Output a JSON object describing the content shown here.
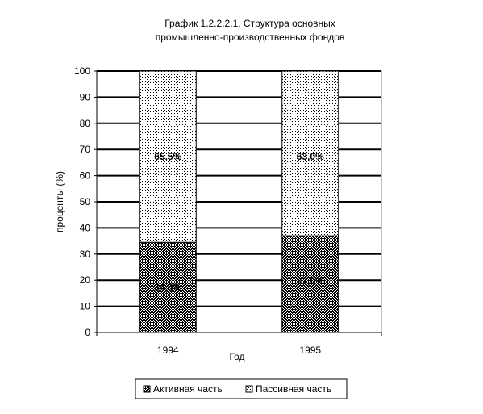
{
  "chart_data": {
    "type": "bar",
    "stacked": true,
    "title_lines": [
      "График 1.2.2.2.1.  Структура основных",
      "промышленно-производственных фондов"
    ],
    "xlabel": "Год",
    "ylabel": "проценты (%)",
    "categories": [
      "1994",
      "1995"
    ],
    "ylim": [
      0,
      100
    ],
    "yticks": [
      0,
      10,
      20,
      30,
      40,
      50,
      60,
      70,
      80,
      90,
      100
    ],
    "grid": true,
    "legend_position": "bottom",
    "series": [
      {
        "name": "Активная часть",
        "values": [
          34.5,
          37.0
        ],
        "labels": [
          "34,5%",
          "37,0%"
        ],
        "pattern": "dense"
      },
      {
        "name": "Пассивная часть",
        "values": [
          65.5,
          63.0
        ],
        "labels": [
          "65,5%",
          "63,0%"
        ],
        "pattern": "light"
      }
    ]
  }
}
